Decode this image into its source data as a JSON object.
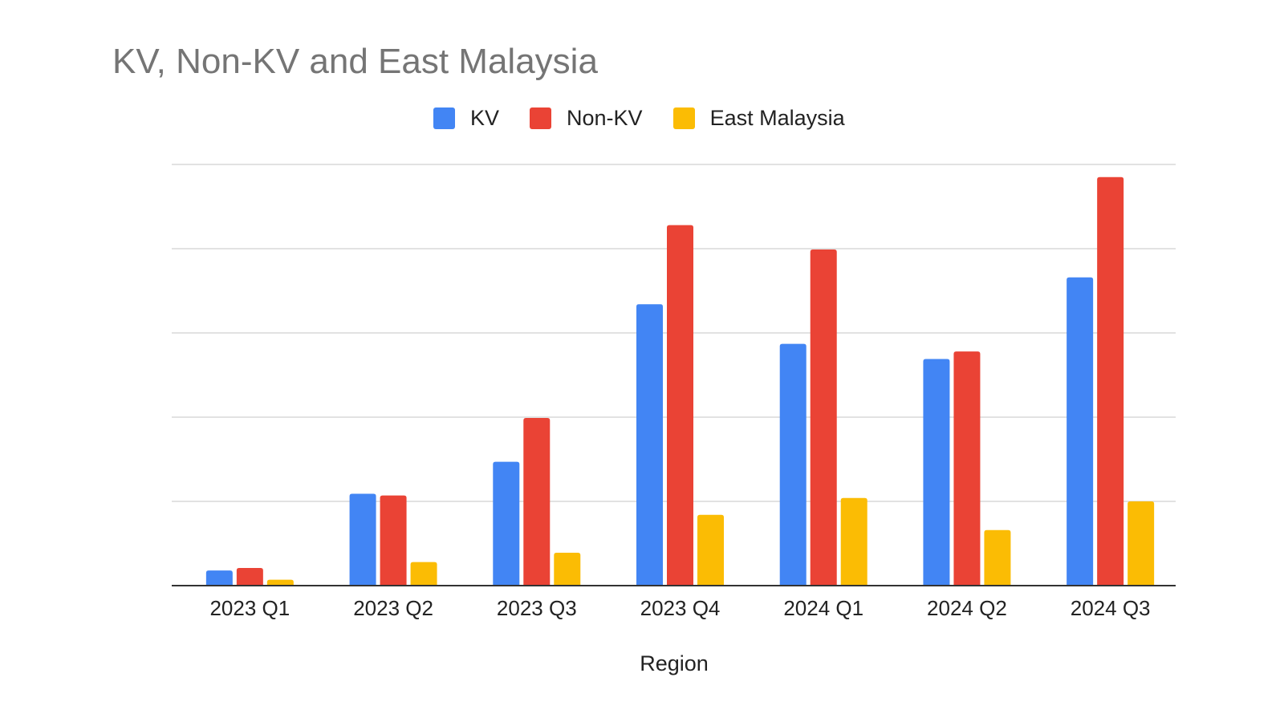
{
  "chart_data": {
    "type": "bar",
    "title": "KV, Non-KV and East Malaysia",
    "xlabel": "Region",
    "ylabel": "",
    "categories": [
      "2023 Q1",
      "2023 Q2",
      "2023 Q3",
      "2023 Q4",
      "2024 Q1",
      "2024 Q2",
      "2024 Q3"
    ],
    "series": [
      {
        "name": "KV",
        "color": "#4285F4",
        "values": [
          0.18,
          1.09,
          1.47,
          3.34,
          2.87,
          2.69,
          3.66
        ]
      },
      {
        "name": "Non-KV",
        "color": "#EA4335",
        "values": [
          0.21,
          1.07,
          1.99,
          4.28,
          3.99,
          2.78,
          4.85
        ]
      },
      {
        "name": "East Malaysia",
        "color": "#FBBC04",
        "values": [
          0.07,
          0.28,
          0.39,
          0.84,
          1.04,
          0.66,
          1.0
        ]
      }
    ],
    "ylim": [
      0,
      5
    ],
    "grid": true,
    "y_tick_labels_visible": false,
    "legend": "top-center"
  }
}
